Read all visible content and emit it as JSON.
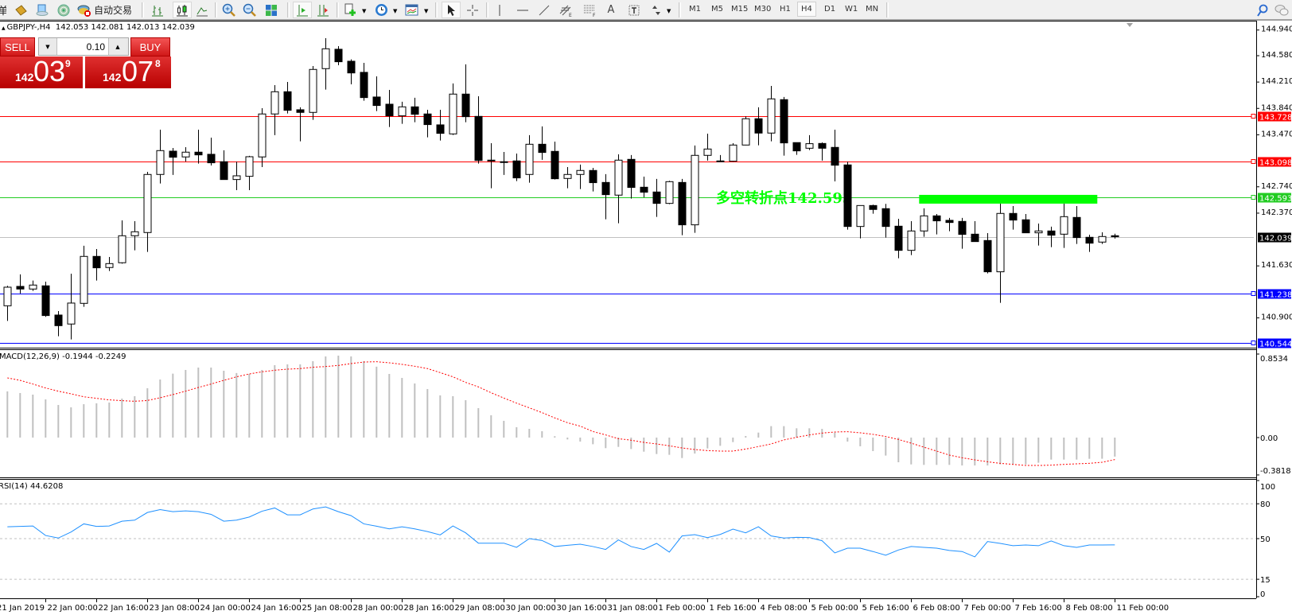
{
  "toolbar": {
    "partial_left_text": "单",
    "auto_trading_label": "自动交易",
    "icons": [
      "market-book-icon",
      "terminal-icon",
      "signals-icon",
      "auto-trading-icon",
      "bar-chart-icon",
      "candlestick-icon",
      "line-chart-icon",
      "zoom-in-icon",
      "zoom-out-icon",
      "tile-windows-icon",
      "auto-scroll-icon",
      "chart-shift-icon",
      "new-chart-icon",
      "periods-clock-icon",
      "templates-icon",
      "cursor-icon",
      "crosshair-icon",
      "vertical-line-icon",
      "horizontal-line-icon",
      "trendline-icon",
      "equidistant-channel-icon",
      "fibonacci-icon",
      "text-icon",
      "text-label-icon",
      "arrows-icon",
      "search-icon",
      "chat-icon"
    ],
    "timeframes": [
      "M1",
      "M5",
      "M15",
      "M30",
      "H1",
      "H4",
      "D1",
      "W1",
      "MN"
    ],
    "active_timeframe": "H4",
    "active_chart_type": "candlestick",
    "active_tool": "cursor"
  },
  "chart_header": {
    "symbol_period": "GBPJPY-,H4",
    "ohlc_text": "142.053 142.081 142.013 142.039"
  },
  "trade_panel": {
    "sell_label": "SELL",
    "buy_label": "BUY",
    "lot_value": "0.10",
    "sell_price": {
      "prefix": "142",
      "pips": "03",
      "fraction": "9"
    },
    "buy_price": {
      "prefix": "142",
      "pips": "07",
      "fraction": "8"
    }
  },
  "price_axis": {
    "ticks": [
      "144.940",
      "144.580",
      "144.210",
      "143.840",
      "143.470",
      "142.740",
      "142.370",
      "141.630",
      "140.900"
    ]
  },
  "levels": [
    {
      "price": "143.728",
      "color": "#ff0000"
    },
    {
      "price": "143.098",
      "color": "#ff0000"
    },
    {
      "price": "142.593",
      "color": "#22cc22"
    },
    {
      "price": "142.039",
      "color": "#c0c0c0",
      "label_bg": "#000000"
    },
    {
      "price": "141.238",
      "color": "#0000ff"
    },
    {
      "price": "140.544",
      "color": "#0000ff"
    }
  ],
  "annotation": {
    "text": "多空转折点142.593",
    "color": "#00ff00",
    "zone_price": 142.593,
    "zone_from_bar": 72,
    "zone_to_bar": 85
  },
  "time_axis": [
    "21 Jan 2019",
    "22 Jan 00:00",
    "22 Jan 16:00",
    "23 Jan 08:00",
    "24 Jan 00:00",
    "24 Jan 16:00",
    "25 Jan 08:00",
    "28 Jan 00:00",
    "28 Jan 16:00",
    "29 Jan 08:00",
    "30 Jan 00:00",
    "30 Jan 16:00",
    "31 Jan 08:00",
    "1 Feb 00:00",
    "1 Feb 16:00",
    "4 Feb 08:00",
    "5 Feb 00:00",
    "5 Feb 16:00",
    "6 Feb 08:00",
    "7 Feb 00:00",
    "7 Feb 16:00",
    "8 Feb 08:00",
    "11 Feb 00:00"
  ],
  "macd": {
    "label": "MACD(12,26,9) -0.1944 -0.2249",
    "axis_labels": [
      "0.8534",
      "0.00",
      "-0.3818"
    ]
  },
  "rsi": {
    "label": "RSI(14) 44.6208",
    "axis_labels": [
      "100",
      "80",
      "50",
      "15",
      "0"
    ]
  },
  "chart_data": {
    "type": "candlestick",
    "symbol": "GBPJPY-",
    "period": "H4",
    "ylim": [
      140.482,
      145.06
    ],
    "ohlc": [
      [
        141.07,
        141.35,
        140.858,
        141.331
      ],
      [
        141.342,
        141.51,
        141.242,
        141.305
      ],
      [
        141.305,
        141.424,
        141.279,
        141.361
      ],
      [
        141.35,
        141.409,
        140.914,
        140.933
      ],
      [
        140.94,
        140.996,
        140.643,
        140.791
      ],
      [
        140.814,
        141.521,
        140.598,
        141.108
      ],
      [
        141.104,
        141.912,
        141.056,
        141.763
      ],
      [
        141.763,
        141.867,
        141.424,
        141.603
      ],
      [
        141.607,
        141.755,
        141.558,
        141.662
      ],
      [
        141.674,
        142.269,
        141.662,
        142.053
      ],
      [
        142.053,
        142.258,
        141.849,
        142.109
      ],
      [
        142.098,
        142.95,
        141.826,
        142.913
      ],
      [
        142.913,
        143.542,
        142.786,
        143.248
      ],
      [
        143.24,
        143.285,
        142.906,
        143.155
      ],
      [
        143.159,
        143.296,
        143.095,
        143.226
      ],
      [
        143.226,
        143.542,
        143.066,
        143.188
      ],
      [
        143.196,
        143.43,
        143.039,
        143.077
      ],
      [
        143.092,
        143.252,
        142.842,
        142.842
      ],
      [
        142.842,
        143.092,
        142.693,
        142.894
      ],
      [
        142.887,
        143.174,
        142.693,
        143.162
      ],
      [
        143.159,
        143.843,
        143.017,
        143.762
      ],
      [
        143.762,
        144.167,
        143.464,
        144.074
      ],
      [
        144.074,
        144.212,
        143.769,
        143.814
      ],
      [
        143.821,
        143.855,
        143.378,
        143.784
      ],
      [
        143.784,
        144.435,
        143.68,
        144.387
      ],
      [
        144.398,
        144.826,
        144.104,
        144.677
      ],
      [
        144.67,
        144.714,
        144.446,
        144.495
      ],
      [
        144.502,
        144.528,
        144.178,
        144.338
      ],
      [
        144.346,
        144.48,
        143.948,
        143.992
      ],
      [
        144.0,
        144.29,
        143.802,
        143.881
      ],
      [
        143.899,
        144.1,
        143.579,
        143.736
      ],
      [
        143.736,
        143.933,
        143.624,
        143.862
      ],
      [
        143.862,
        143.989,
        143.646,
        143.758
      ],
      [
        143.762,
        143.821,
        143.434,
        143.613
      ],
      [
        143.609,
        143.821,
        143.389,
        143.49
      ],
      [
        143.482,
        144.19,
        143.468,
        144.041
      ],
      [
        144.041,
        144.458,
        143.646,
        143.724
      ],
      [
        143.728,
        144.011,
        143.066,
        143.11
      ],
      [
        143.114,
        143.352,
        142.719,
        143.107
      ],
      [
        143.092,
        143.229,
        142.906,
        143.09
      ],
      [
        143.103,
        143.207,
        142.82,
        142.865
      ],
      [
        142.913,
        143.464,
        142.798,
        143.337
      ],
      [
        143.337,
        143.587,
        143.118,
        143.222
      ],
      [
        143.237,
        143.374,
        142.842,
        142.853
      ],
      [
        142.857,
        143.017,
        142.719,
        142.913
      ],
      [
        142.913,
        143.051,
        142.708,
        142.969
      ],
      [
        142.969,
        143.006,
        142.675,
        142.798
      ],
      [
        142.801,
        142.917,
        142.284,
        142.63
      ],
      [
        142.623,
        143.196,
        142.228,
        143.114
      ],
      [
        143.125,
        143.185,
        142.574,
        142.731
      ],
      [
        142.734,
        142.883,
        142.593,
        142.664
      ],
      [
        142.667,
        142.85,
        142.317,
        142.507
      ],
      [
        142.507,
        142.824,
        142.496,
        142.812
      ],
      [
        142.801,
        142.85,
        142.061,
        142.206
      ],
      [
        142.206,
        143.319,
        142.094,
        143.181
      ],
      [
        143.181,
        143.486,
        143.107,
        143.27
      ],
      [
        143.099,
        143.185,
        143.092,
        143.103
      ],
      [
        143.099,
        143.352,
        143.092,
        143.326
      ],
      [
        143.326,
        143.728,
        143.322,
        143.695
      ],
      [
        143.695,
        143.855,
        143.322,
        143.494
      ],
      [
        143.494,
        144.156,
        143.378,
        143.974
      ],
      [
        143.963,
        144.0,
        143.177,
        143.356
      ],
      [
        143.36,
        143.36,
        143.188,
        143.244
      ],
      [
        143.281,
        143.464,
        143.255,
        143.345
      ],
      [
        143.348,
        143.363,
        143.107,
        143.281
      ],
      [
        143.293,
        143.542,
        142.816,
        143.043
      ],
      [
        143.047,
        143.092,
        142.139,
        142.183
      ],
      [
        142.183,
        142.48,
        142.016,
        142.477
      ],
      [
        142.477,
        142.489,
        142.362,
        142.422
      ],
      [
        142.433,
        142.5,
        142.027,
        142.183
      ],
      [
        142.187,
        142.291,
        141.737,
        141.848
      ],
      [
        141.848,
        142.258,
        141.781,
        142.12
      ],
      [
        142.12,
        142.437,
        142.038,
        142.332
      ],
      [
        142.332,
        142.358,
        142.072,
        142.262
      ],
      [
        142.269,
        142.303,
        142.116,
        142.239
      ],
      [
        142.254,
        142.303,
        141.871,
        142.072
      ],
      [
        142.075,
        142.258,
        141.971,
        141.971
      ],
      [
        141.986,
        142.09,
        141.525,
        141.547
      ],
      [
        141.547,
        142.503,
        141.112,
        142.366
      ],
      [
        142.366,
        142.47,
        142.139,
        142.273
      ],
      [
        142.277,
        142.358,
        142.094,
        142.094
      ],
      [
        142.094,
        142.224,
        141.915,
        142.12
      ],
      [
        142.12,
        142.18,
        141.893,
        142.061
      ],
      [
        142.075,
        142.503,
        141.882,
        142.321
      ],
      [
        142.31,
        142.47,
        141.938,
        142.027
      ],
      [
        142.031,
        142.068,
        141.826,
        141.949
      ],
      [
        141.964,
        142.101,
        141.938,
        142.042
      ],
      [
        142.053,
        142.081,
        142.013,
        142.039
      ]
    ],
    "macd_ylim": [
      -0.4065,
      0.886
    ],
    "macd_hist": [
      0.472,
      0.455,
      0.439,
      0.39,
      0.333,
      0.309,
      0.341,
      0.35,
      0.358,
      0.398,
      0.423,
      0.504,
      0.593,
      0.653,
      0.691,
      0.715,
      0.715,
      0.683,
      0.659,
      0.65,
      0.691,
      0.74,
      0.748,
      0.748,
      0.78,
      0.829,
      0.837,
      0.829,
      0.78,
      0.724,
      0.65,
      0.61,
      0.553,
      0.496,
      0.431,
      0.423,
      0.382,
      0.301,
      0.228,
      0.171,
      0.106,
      0.089,
      0.065,
      0.014,
      -0.019,
      -0.041,
      -0.068,
      -0.108,
      -0.095,
      -0.117,
      -0.144,
      -0.168,
      -0.176,
      -0.209,
      -0.163,
      -0.111,
      -0.084,
      -0.046,
      0.016,
      0.051,
      0.117,
      0.117,
      0.095,
      0.095,
      0.089,
      0.051,
      -0.041,
      -0.089,
      -0.138,
      -0.184,
      -0.252,
      -0.274,
      -0.279,
      -0.279,
      -0.279,
      -0.285,
      -0.285,
      -0.285,
      -0.274,
      -0.274,
      -0.274,
      -0.257,
      -0.225,
      -0.225,
      -0.225,
      -0.217,
      -0.216,
      -0.1944
    ],
    "macd_signal": [
      0.61,
      0.585,
      0.547,
      0.507,
      0.474,
      0.447,
      0.417,
      0.401,
      0.385,
      0.377,
      0.371,
      0.379,
      0.407,
      0.439,
      0.474,
      0.512,
      0.547,
      0.585,
      0.621,
      0.65,
      0.672,
      0.688,
      0.699,
      0.705,
      0.718,
      0.726,
      0.737,
      0.756,
      0.772,
      0.775,
      0.764,
      0.748,
      0.729,
      0.705,
      0.664,
      0.621,
      0.564,
      0.518,
      0.458,
      0.404,
      0.352,
      0.304,
      0.255,
      0.201,
      0.152,
      0.117,
      0.062,
      0.027,
      -0.011,
      -0.027,
      -0.049,
      -0.065,
      -0.084,
      -0.106,
      -0.122,
      -0.133,
      -0.138,
      -0.138,
      -0.117,
      -0.092,
      -0.065,
      -0.024,
      0.003,
      0.027,
      0.046,
      0.057,
      0.06,
      0.049,
      0.033,
      0.011,
      -0.019,
      -0.057,
      -0.098,
      -0.138,
      -0.179,
      -0.206,
      -0.228,
      -0.247,
      -0.263,
      -0.274,
      -0.285,
      -0.285,
      -0.282,
      -0.274,
      -0.268,
      -0.263,
      -0.252,
      -0.2249
    ],
    "rsi_ylim": [
      0,
      100
    ],
    "rsi_levels": [
      80,
      50,
      15
    ],
    "rsi": [
      60.2,
      60.5,
      60.9,
      52.7,
      50.5,
      55.7,
      62.7,
      60.5,
      60.9,
      65.0,
      65.9,
      72.5,
      75.0,
      73.2,
      73.9,
      73.2,
      70.9,
      65.0,
      65.9,
      68.6,
      73.6,
      76.4,
      70.5,
      70.5,
      75.5,
      77.3,
      73.2,
      69.8,
      62.7,
      60.7,
      58.4,
      60.2,
      58.4,
      56.1,
      53.2,
      60.9,
      55.0,
      46.1,
      46.1,
      46.1,
      42.5,
      50.0,
      48.4,
      43.2,
      44.3,
      45.2,
      43.2,
      40.7,
      48.9,
      43.2,
      40.7,
      45.9,
      38.4,
      52.3,
      53.4,
      50.9,
      53.6,
      58.2,
      55.0,
      60.2,
      52.3,
      50.5,
      51.1,
      50.9,
      48.2,
      37.7,
      41.8,
      41.8,
      38.9,
      35.7,
      40.2,
      43.2,
      42.5,
      41.8,
      39.8,
      38.9,
      34.3,
      47.5,
      45.9,
      43.9,
      44.5,
      43.9,
      48.0,
      43.9,
      42.5,
      44.5,
      44.5,
      44.6
    ],
    "colors": {
      "bull_body": "#ffffff",
      "bear_body": "#000000",
      "macd_hist": "#c0c0c0",
      "macd_signal": "#ff0000",
      "rsi_line": "#1e90ff"
    }
  }
}
